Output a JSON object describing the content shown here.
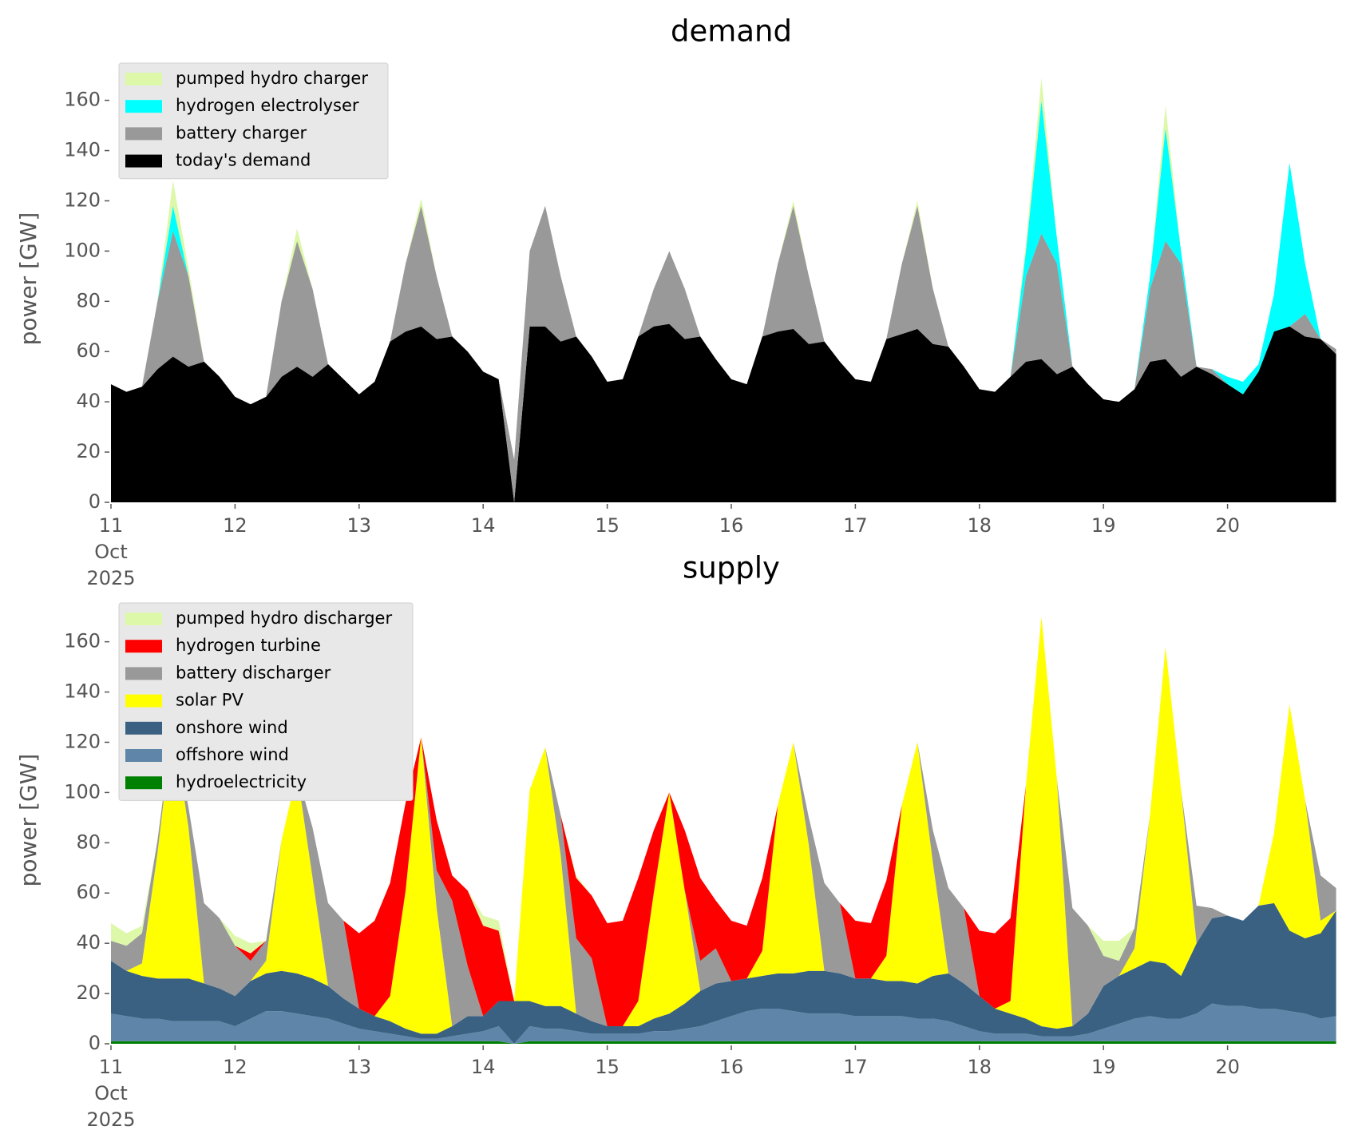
{
  "chart_data": [
    {
      "type": "area",
      "stacked": true,
      "title": "demand",
      "ylabel": "power [GW]",
      "xlim": [
        11,
        21
      ],
      "ylim": [
        0,
        178
      ],
      "xticks": [
        {
          "value": 11,
          "label": "11\nOct\n2025"
        },
        12,
        13,
        14,
        15,
        16,
        17,
        18,
        19,
        20
      ],
      "yticks": [
        0,
        20,
        40,
        60,
        80,
        100,
        120,
        140,
        160
      ],
      "legend": "upper left",
      "x": [
        11,
        11.125,
        11.25,
        11.375,
        11.5,
        11.625,
        11.75,
        11.875,
        12,
        12.125,
        12.25,
        12.375,
        12.5,
        12.625,
        12.75,
        12.875,
        13,
        13.125,
        13.25,
        13.375,
        13.5,
        13.625,
        13.75,
        13.875,
        14,
        14.125,
        14.25,
        14.375,
        14.5,
        14.625,
        14.75,
        14.875,
        15,
        15.125,
        15.25,
        15.375,
        15.5,
        15.625,
        15.75,
        15.875,
        16,
        16.125,
        16.25,
        16.375,
        16.5,
        16.625,
        16.75,
        16.875,
        17,
        17.125,
        17.25,
        17.375,
        17.5,
        17.625,
        17.75,
        17.875,
        18,
        18.125,
        18.25,
        18.375,
        18.5,
        18.625,
        18.75,
        18.875,
        19,
        19.125,
        19.25,
        19.375,
        19.5,
        19.625,
        19.75,
        19.875,
        20,
        20.125,
        20.25,
        20.375,
        20.5,
        20.625,
        20.75,
        20.875
      ],
      "series": [
        {
          "name": "today's demand",
          "color": "#000000",
          "values": [
            47,
            44,
            46,
            53,
            58,
            54,
            56,
            50,
            42,
            39,
            42,
            50,
            54,
            50,
            55,
            49,
            43,
            48,
            64,
            68,
            70,
            65,
            66,
            60,
            52,
            49,
            0,
            70,
            70,
            64,
            66,
            58,
            48,
            49,
            66,
            70,
            71,
            65,
            66,
            57,
            49,
            47,
            66,
            68,
            69,
            63,
            64,
            56,
            49,
            48,
            65,
            67,
            69,
            63,
            62,
            54,
            45,
            44,
            50,
            56,
            57,
            51,
            54,
            47,
            41,
            40,
            45,
            56,
            57,
            50,
            54,
            51,
            47,
            43,
            52,
            68,
            70,
            66,
            65,
            59
          ]
        },
        {
          "name": "battery charger",
          "color": "#999999",
          "values": [
            0,
            0,
            0,
            27,
            50,
            36,
            0,
            0,
            0,
            0,
            0,
            30,
            50,
            35,
            0,
            0,
            0,
            0,
            0,
            27,
            48,
            25,
            0,
            0,
            0,
            0,
            17,
            30,
            48,
            26,
            0,
            0,
            0,
            0,
            0,
            15,
            29,
            20,
            0,
            0,
            0,
            0,
            0,
            27,
            49,
            27,
            0,
            0,
            0,
            0,
            0,
            28,
            49,
            22,
            0,
            0,
            0,
            0,
            0,
            34,
            50,
            44,
            0,
            0,
            0,
            0,
            0,
            29,
            47,
            45,
            0,
            2,
            0,
            0,
            0,
            0,
            0,
            9,
            0,
            2
          ]
        },
        {
          "name": "hydrogen electrolyser",
          "color": "#00ffff",
          "values": [
            0,
            0,
            0,
            0,
            10,
            0,
            0,
            0,
            0,
            0,
            0,
            0,
            0,
            0,
            0,
            0,
            0,
            0,
            0,
            0,
            0,
            0,
            0,
            0,
            0,
            0,
            0,
            0,
            0,
            0,
            0,
            0,
            0,
            0,
            0,
            0,
            0,
            0,
            0,
            0,
            0,
            0,
            0,
            0,
            0,
            0,
            0,
            0,
            0,
            0,
            0,
            0,
            0,
            0,
            0,
            0,
            0,
            0,
            0,
            10,
            53,
            10,
            0,
            0,
            0,
            0,
            0,
            5,
            45,
            5,
            0,
            0,
            3,
            5,
            3,
            15,
            65,
            20,
            0,
            0
          ]
        },
        {
          "name": "pumped hydro charger",
          "color": "#ddf8a8",
          "values": [
            0,
            0,
            0,
            0,
            10,
            3,
            0,
            0,
            0,
            0,
            0,
            0,
            5,
            0,
            0,
            0,
            0,
            0,
            0,
            0,
            3,
            0,
            0,
            0,
            0,
            0,
            0,
            0,
            0,
            0,
            0,
            0,
            0,
            0,
            0,
            0,
            0,
            0,
            0,
            0,
            0,
            0,
            0,
            0,
            2,
            0,
            0,
            0,
            0,
            0,
            0,
            0,
            2,
            0,
            0,
            0,
            0,
            0,
            0,
            3,
            9,
            0,
            0,
            0,
            0,
            0,
            0,
            0,
            9,
            0,
            0,
            0,
            0,
            0,
            0,
            0,
            0,
            0,
            0,
            0
          ]
        }
      ]
    },
    {
      "type": "area",
      "stacked": true,
      "title": "supply",
      "ylabel": "power [GW]",
      "xlim": [
        11,
        21
      ],
      "ylim": [
        0,
        178
      ],
      "xticks": [
        {
          "value": 11,
          "label": "11\nOct\n2025"
        },
        12,
        13,
        14,
        15,
        16,
        17,
        18,
        19,
        20
      ],
      "yticks": [
        0,
        20,
        40,
        60,
        80,
        100,
        120,
        140,
        160
      ],
      "legend": "upper left",
      "x": [
        11,
        11.125,
        11.25,
        11.375,
        11.5,
        11.625,
        11.75,
        11.875,
        12,
        12.125,
        12.25,
        12.375,
        12.5,
        12.625,
        12.75,
        12.875,
        13,
        13.125,
        13.25,
        13.375,
        13.5,
        13.625,
        13.75,
        13.875,
        14,
        14.125,
        14.25,
        14.375,
        14.5,
        14.625,
        14.75,
        14.875,
        15,
        15.125,
        15.25,
        15.375,
        15.5,
        15.625,
        15.75,
        15.875,
        16,
        16.125,
        16.25,
        16.375,
        16.5,
        16.625,
        16.75,
        16.875,
        17,
        17.125,
        17.25,
        17.375,
        17.5,
        17.625,
        17.75,
        17.875,
        18,
        18.125,
        18.25,
        18.375,
        18.5,
        18.625,
        18.75,
        18.875,
        19,
        19.125,
        19.25,
        19.375,
        19.5,
        19.625,
        19.75,
        19.875,
        20,
        20.125,
        20.25,
        20.375,
        20.5,
        20.625,
        20.75,
        20.875
      ],
      "series": [
        {
          "name": "hydroelectricity",
          "color": "#008000",
          "values": [
            1,
            1,
            1,
            1,
            1,
            1,
            1,
            1,
            1,
            1,
            1,
            1,
            1,
            1,
            1,
            1,
            1,
            1,
            1,
            1,
            1,
            1,
            1,
            1,
            1,
            1,
            0,
            1,
            1,
            1,
            1,
            1,
            1,
            1,
            1,
            1,
            1,
            1,
            1,
            1,
            1,
            1,
            1,
            1,
            1,
            1,
            1,
            1,
            1,
            1,
            1,
            1,
            1,
            1,
            1,
            1,
            1,
            1,
            1,
            1,
            1,
            1,
            1,
            1,
            1,
            1,
            1,
            1,
            1,
            1,
            1,
            1,
            1,
            1,
            1,
            1,
            1,
            1,
            1,
            1
          ]
        },
        {
          "name": "offshore wind",
          "color": "#5f86a8",
          "values": [
            11,
            10,
            9,
            9,
            8,
            8,
            8,
            8,
            6,
            9,
            12,
            12,
            11,
            10,
            9,
            7,
            5,
            4,
            3,
            2,
            1,
            1,
            2,
            3,
            4,
            6,
            0,
            6,
            5,
            5,
            4,
            3,
            3,
            3,
            3,
            4,
            4,
            5,
            6,
            8,
            10,
            12,
            13,
            13,
            12,
            11,
            11,
            11,
            10,
            10,
            10,
            10,
            9,
            9,
            8,
            6,
            4,
            3,
            3,
            3,
            2,
            2,
            2,
            3,
            5,
            7,
            9,
            10,
            9,
            9,
            11,
            15,
            14,
            14,
            13,
            13,
            12,
            11,
            9,
            10
          ]
        },
        {
          "name": "onshore wind",
          "color": "#3b6182",
          "values": [
            21,
            18,
            17,
            16,
            17,
            17,
            15,
            13,
            12,
            15,
            15,
            16,
            16,
            15,
            13,
            10,
            8,
            6,
            5,
            3,
            2,
            2,
            4,
            7,
            6,
            10,
            17,
            10,
            9,
            9,
            7,
            5,
            3,
            3,
            3,
            5,
            7,
            10,
            14,
            15,
            14,
            13,
            13,
            14,
            15,
            17,
            17,
            16,
            15,
            15,
            14,
            14,
            14,
            17,
            19,
            17,
            14,
            10,
            8,
            6,
            4,
            3,
            4,
            8,
            17,
            19,
            20,
            22,
            22,
            17,
            28,
            34,
            36,
            34,
            41,
            42,
            32,
            30,
            34,
            42
          ]
        },
        {
          "name": "solar PV",
          "color": "#ffff00",
          "values": [
            0,
            0,
            5,
            50,
            102,
            60,
            0,
            0,
            0,
            0,
            5,
            52,
            80,
            40,
            0,
            0,
            0,
            0,
            10,
            55,
            118,
            50,
            0,
            0,
            0,
            0,
            0,
            84,
            103,
            60,
            0,
            0,
            0,
            0,
            10,
            50,
            88,
            45,
            0,
            0,
            0,
            0,
            10,
            67,
            92,
            50,
            0,
            0,
            0,
            0,
            10,
            70,
            96,
            45,
            0,
            0,
            0,
            0,
            5,
            93,
            163,
            99,
            0,
            0,
            0,
            0,
            8,
            58,
            126,
            74,
            0,
            0,
            0,
            0,
            0,
            28,
            90,
            55,
            5,
            0
          ]
        },
        {
          "name": "battery discharger",
          "color": "#999999",
          "values": [
            8,
            10,
            12,
            5,
            0,
            8,
            32,
            28,
            20,
            8,
            8,
            0,
            0,
            20,
            33,
            31,
            0,
            0,
            0,
            0,
            0,
            15,
            50,
            20,
            0,
            0,
            0,
            0,
            0,
            16,
            30,
            25,
            0,
            0,
            0,
            0,
            0,
            0,
            12,
            14,
            0,
            0,
            0,
            0,
            0,
            11,
            35,
            28,
            0,
            0,
            0,
            0,
            0,
            13,
            34,
            30,
            0,
            0,
            0,
            0,
            0,
            0,
            47,
            35,
            12,
            6,
            8,
            0,
            0,
            0,
            15,
            4,
            0,
            0,
            0,
            0,
            0,
            0,
            18,
            9
          ]
        },
        {
          "name": "hydrogen turbine",
          "color": "#ff0000",
          "values": [
            0,
            0,
            0,
            0,
            0,
            0,
            0,
            0,
            0,
            3,
            0,
            0,
            0,
            0,
            0,
            0,
            30,
            38,
            45,
            35,
            0,
            20,
            10,
            30,
            36,
            28,
            0,
            0,
            0,
            0,
            24,
            25,
            41,
            42,
            49,
            25,
            0,
            24,
            33,
            19,
            24,
            21,
            29,
            0,
            0,
            0,
            0,
            0,
            23,
            22,
            30,
            0,
            0,
            0,
            0,
            0,
            26,
            30,
            33,
            0,
            0,
            0,
            0,
            0,
            0,
            0,
            0,
            0,
            0,
            0,
            0,
            0,
            0,
            0,
            0,
            0,
            0,
            0,
            0,
            0
          ]
        },
        {
          "name": "pumped hydro discharger",
          "color": "#ddf8a8",
          "values": [
            7,
            5,
            3,
            0,
            0,
            0,
            0,
            0,
            4,
            4,
            0,
            0,
            0,
            0,
            0,
            0,
            0,
            0,
            0,
            0,
            0,
            0,
            0,
            0,
            4,
            4,
            0,
            0,
            0,
            0,
            1,
            0,
            0,
            0,
            0,
            0,
            0,
            0,
            0,
            0,
            0,
            0,
            0,
            0,
            0,
            0,
            0,
            0,
            0,
            0,
            0,
            0,
            0,
            0,
            0,
            0,
            0,
            0,
            0,
            0,
            0,
            0,
            0,
            0,
            6,
            8,
            0,
            0,
            0,
            0,
            0,
            0,
            0,
            0,
            0,
            0,
            0,
            0,
            0,
            0
          ]
        }
      ]
    }
  ]
}
